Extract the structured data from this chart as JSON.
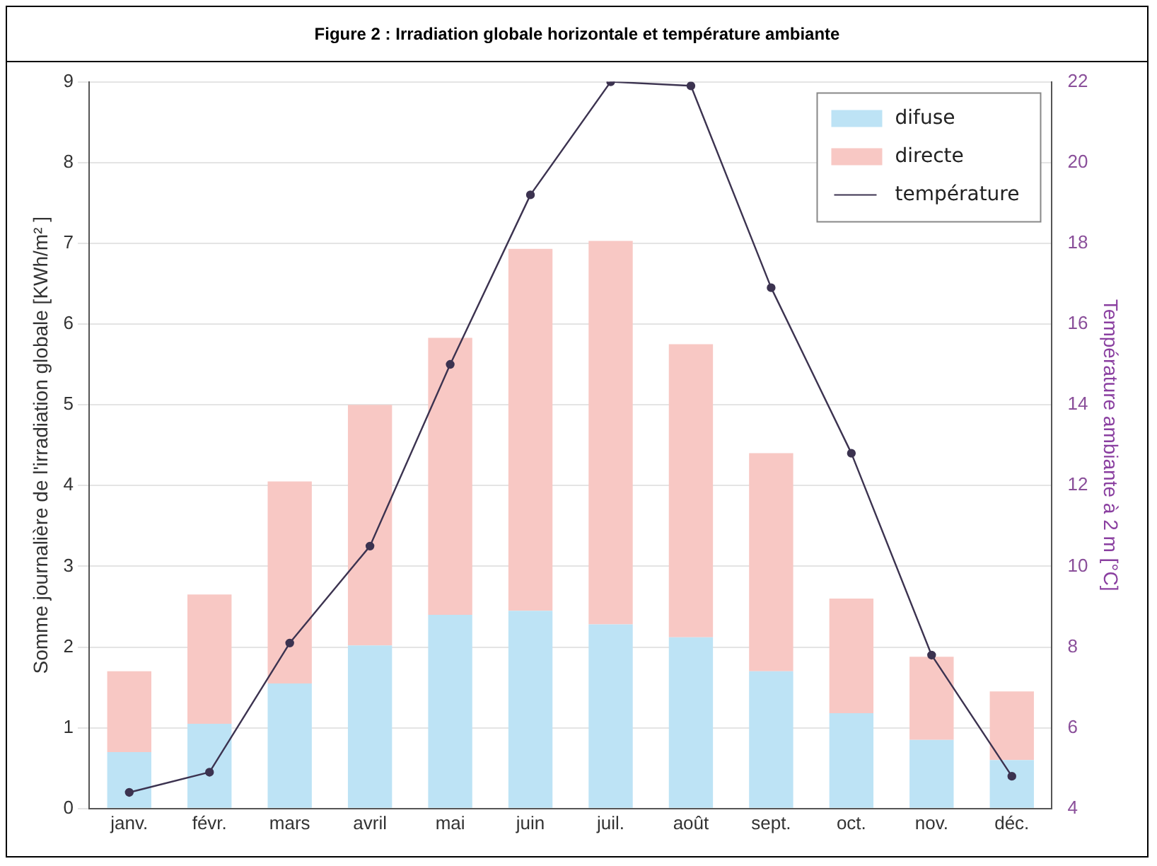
{
  "chart_data": {
    "type": "bar",
    "title": "Figure 2 : Irradiation globale horizontale et température ambiante",
    "categories": [
      "janv.",
      "févr.",
      "mars",
      "avril",
      "mai",
      "juin",
      "juil.",
      "août",
      "sept.",
      "oct.",
      "nov.",
      "déc."
    ],
    "stacked": true,
    "series": [
      {
        "name": "difuse",
        "color": "#bde3f5",
        "values": [
          0.7,
          1.05,
          1.55,
          2.02,
          2.4,
          2.45,
          2.28,
          2.12,
          1.7,
          1.18,
          0.85,
          0.6
        ]
      },
      {
        "name": "directe",
        "color": "#f8c8c4",
        "values": [
          1.0,
          1.6,
          2.5,
          2.98,
          3.43,
          4.48,
          4.75,
          3.63,
          2.7,
          1.42,
          1.03,
          0.85
        ]
      },
      {
        "name": "température",
        "type": "line",
        "axis": "y2",
        "color": "#3c3350",
        "values": [
          4.4,
          4.9,
          8.1,
          10.5,
          15.0,
          19.2,
          22.0,
          21.9,
          16.9,
          12.8,
          7.8,
          4.8
        ]
      }
    ],
    "ylabel": "Somme journalière de l'irradiation globale [KWh/m² ]",
    "y2label": "Température ambiante à 2 m [°C]",
    "ylim": [
      0,
      9
    ],
    "yticks": [
      0,
      1,
      2,
      3,
      4,
      5,
      6,
      7,
      8,
      9
    ],
    "y2lim": [
      4,
      22
    ],
    "y2ticks": [
      4,
      6,
      8,
      10,
      12,
      14,
      16,
      18,
      20,
      22
    ],
    "grid": "y",
    "legend": "top right",
    "marker": "circle",
    "line_style": "solid"
  }
}
